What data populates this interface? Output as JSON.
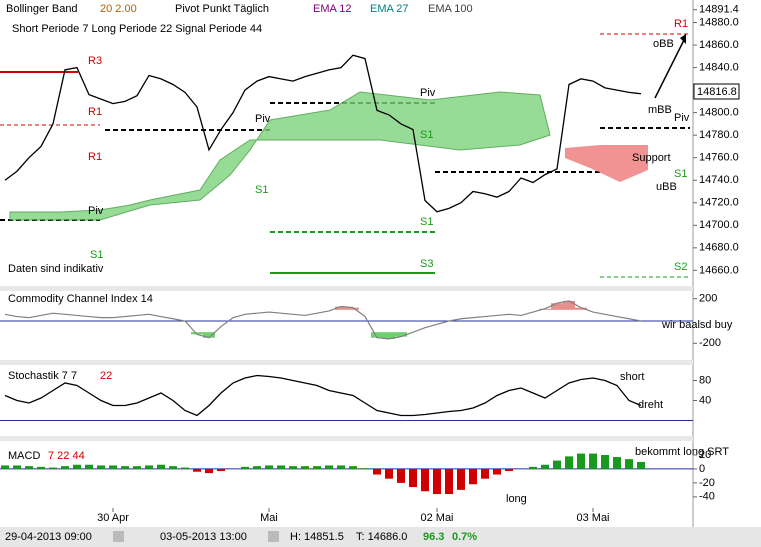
{
  "header": {
    "bollinger": "Bollinger Band",
    "boll_params": "20  2.00",
    "pivot": "Pivot Punkt Täglich",
    "ema1": "EMA 12",
    "ema2": "EMA 27",
    "ema3": "EMA 100",
    "periods": "Short Periode  7    Long Periode  22    Signal Periode  44",
    "current_price": "14816.8"
  },
  "annotations": [
    "R3",
    "R1",
    "R1",
    "Piv",
    "Piv",
    "Piv",
    "S1",
    "S1",
    "S1",
    "S1",
    "S2",
    "S3",
    "Daten sind indikativ",
    "oBB",
    "mBB",
    "Piv",
    "Support",
    "S1",
    "uBB",
    "R1",
    "S2",
    "wir baalsd buy",
    "short",
    "dreht",
    "bekommt long SRT",
    "long"
  ],
  "footer": {
    "start": "29-04-2013 09:00",
    "end": "03-05-2013 13:00",
    "high": "H: 14851.5",
    "low": "T: 14686.0",
    "change": "96.3",
    "change_pct": "0.7%"
  },
  "chart_data": [
    {
      "type": "line",
      "title": "",
      "color": "#000000",
      "values": [
        14740,
        14748,
        14760,
        14770,
        14790,
        14838,
        14840,
        14816,
        14812,
        14808,
        14810,
        14815,
        14833,
        14830,
        14825,
        14818,
        14805,
        14767,
        14785,
        14800,
        14820,
        14828,
        14832,
        14830,
        14828,
        14832,
        14835,
        14838,
        14840,
        14851,
        14848,
        14802,
        14798,
        14790,
        14785,
        14722,
        14712,
        14715,
        14720,
        14730,
        14728,
        14725,
        14730,
        14742,
        14738,
        14745,
        14750,
        14825,
        14830,
        14828,
        14822,
        14820,
        14818,
        14816.8
      ],
      "ylim": [
        14647,
        14900
      ],
      "yticks": [
        14891.4,
        {
          "value": 14880,
          "label": "14880.0"
        },
        {
          "value": 14860,
          "label": "14860.0"
        },
        {
          "value": 14840,
          "label": "14840.0"
        },
        {
          "value": 14800,
          "label": "14800.0"
        },
        {
          "value": 14780,
          "label": "14780.0"
        },
        {
          "value": 14760,
          "label": "14760.0"
        },
        {
          "value": 14740,
          "label": "14740.0"
        },
        {
          "value": 14720,
          "label": "14720.0"
        },
        {
          "value": 14700,
          "label": "14700.0"
        },
        {
          "value": 14680,
          "label": "14680.0"
        },
        {
          "value": 14660,
          "label": "14660.0"
        }
      ],
      "grid": false
    },
    {
      "type": "area",
      "title": "Commodity Channel Index  14",
      "color": "#808080",
      "values": [
        60,
        40,
        30,
        50,
        70,
        60,
        50,
        40,
        30,
        30,
        40,
        50,
        60,
        40,
        20,
        0,
        -120,
        -150,
        -50,
        30,
        60,
        70,
        80,
        70,
        60,
        50,
        70,
        90,
        130,
        120,
        40,
        -150,
        -160,
        -140,
        -100,
        -60,
        -30,
        0,
        20,
        30,
        40,
        50,
        60,
        50,
        80,
        110,
        160,
        180,
        120,
        80,
        60,
        40,
        20,
        0
      ],
      "ylim": [
        -260,
        260
      ],
      "yticks": [
        200,
        -200
      ],
      "grid": false
    },
    {
      "type": "line",
      "title": "Stochastik  7  7",
      "title_extra": "22",
      "color": "#000000",
      "values": [
        50,
        40,
        35,
        45,
        60,
        75,
        70,
        55,
        40,
        30,
        30,
        35,
        45,
        55,
        40,
        20,
        10,
        30,
        55,
        75,
        85,
        90,
        88,
        85,
        80,
        75,
        70,
        60,
        55,
        50,
        35,
        20,
        15,
        10,
        10,
        12,
        15,
        18,
        20,
        25,
        35,
        50,
        60,
        65,
        55,
        45,
        60,
        75,
        82,
        85,
        80,
        70,
        40,
        30
      ],
      "ylim": [
        -15,
        105
      ],
      "yticks": [
        80,
        40
      ],
      "grid": false
    },
    {
      "type": "bar",
      "title": "MACD",
      "title_extra": "7  22  44",
      "color": "#1a9a1a",
      "negative_color": "#d00000",
      "categories": [
        null,
        null,
        null,
        null,
        null,
        null,
        null,
        null,
        null,
        "30 Apr",
        null,
        null,
        null,
        null,
        null,
        null,
        null,
        null,
        null,
        null,
        null,
        null,
        "Mai",
        null,
        null,
        null,
        null,
        null,
        null,
        null,
        null,
        null,
        null,
        null,
        null,
        null,
        "02 Mai",
        null,
        null,
        null,
        null,
        null,
        null,
        null,
        null,
        null,
        null,
        null,
        null,
        "03 Mai",
        null,
        null,
        null,
        null
      ],
      "values": [
        5,
        5,
        4,
        3,
        2,
        4,
        6,
        6,
        5,
        5,
        4,
        4,
        5,
        6,
        4,
        2,
        -4,
        -6,
        -3,
        0,
        3,
        4,
        5,
        5,
        4,
        4,
        4,
        5,
        5,
        4,
        1,
        -8,
        -14,
        -20,
        -26,
        -32,
        -36,
        -36,
        -30,
        -22,
        -14,
        -8,
        -3,
        0,
        3,
        6,
        12,
        18,
        22,
        22,
        20,
        17,
        14,
        10
      ],
      "ylim": [
        -56,
        30
      ],
      "yticks": [
        20,
        0,
        -20,
        -40
      ],
      "grid": false
    }
  ]
}
